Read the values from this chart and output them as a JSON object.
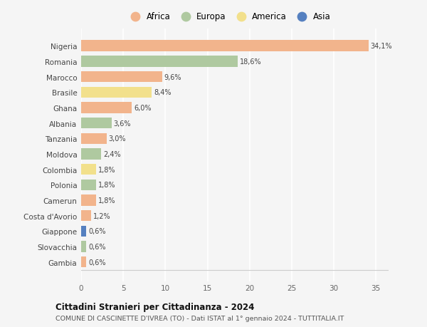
{
  "countries": [
    "Nigeria",
    "Romania",
    "Marocco",
    "Brasile",
    "Ghana",
    "Albania",
    "Tanzania",
    "Moldova",
    "Colombia",
    "Polonia",
    "Camerun",
    "Costa d'Avorio",
    "Giappone",
    "Slovacchia",
    "Gambia"
  ],
  "values": [
    34.1,
    18.6,
    9.6,
    8.4,
    6.0,
    3.6,
    3.0,
    2.4,
    1.8,
    1.8,
    1.8,
    1.2,
    0.6,
    0.6,
    0.6
  ],
  "labels": [
    "34,1%",
    "18,6%",
    "9,6%",
    "8,4%",
    "6,0%",
    "3,6%",
    "3,0%",
    "2,4%",
    "1,8%",
    "1,8%",
    "1,8%",
    "1,2%",
    "0,6%",
    "0,6%",
    "0,6%"
  ],
  "continents": [
    "Africa",
    "Europa",
    "Africa",
    "America",
    "Africa",
    "Europa",
    "Africa",
    "Europa",
    "America",
    "Europa",
    "Africa",
    "Africa",
    "Asia",
    "Europa",
    "Africa"
  ],
  "continent_colors": {
    "Africa": "#F2B48C",
    "Europa": "#AFC9A0",
    "America": "#F2E08C",
    "Asia": "#5580C0"
  },
  "legend_items": [
    "Africa",
    "Europa",
    "America",
    "Asia"
  ],
  "legend_colors": [
    "#F2B48C",
    "#AFC9A0",
    "#F2E08C",
    "#5580C0"
  ],
  "title": "Cittadini Stranieri per Cittadinanza - 2024",
  "subtitle": "COMUNE DI CASCINETTE D'IVREA (TO) - Dati ISTAT al 1° gennaio 2024 - TUTTITALIA.IT",
  "xlim": [
    0,
    36.5
  ],
  "xticks": [
    0,
    5,
    10,
    15,
    20,
    25,
    30,
    35
  ],
  "background_color": "#f5f5f5",
  "grid_color": "#ffffff",
  "bar_height": 0.72
}
